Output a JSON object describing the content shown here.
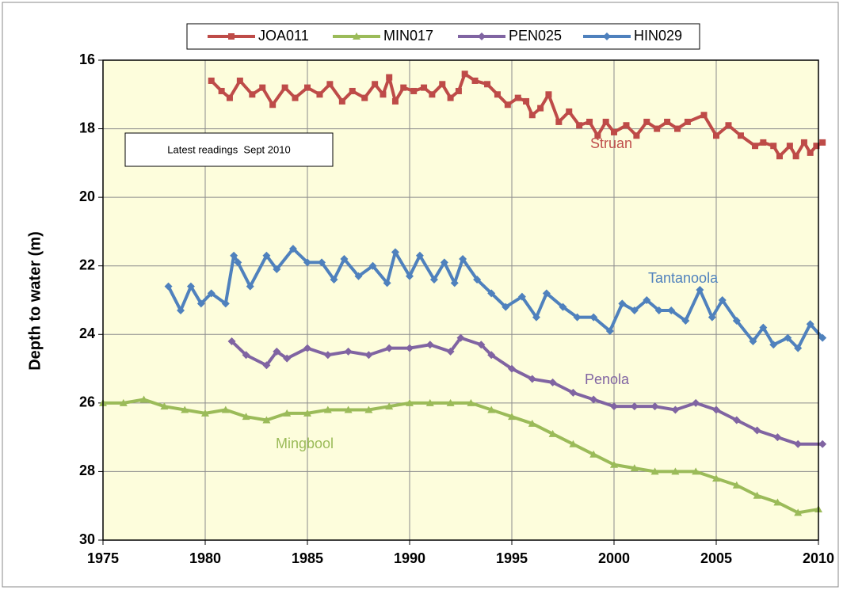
{
  "chart_data": {
    "type": "line",
    "y_label": "Depth to water (m)",
    "xlim": [
      1975,
      2010
    ],
    "ylim": [
      16,
      30
    ],
    "y_inverted": true,
    "grid": true,
    "xticks": [
      1975,
      1980,
      1985,
      1990,
      1995,
      2000,
      2005,
      2010
    ],
    "yticks": [
      16,
      18,
      20,
      22,
      24,
      26,
      28,
      30
    ],
    "legend": "top",
    "annotations": [
      {
        "text": "Latest readings  Sept 2010"
      },
      {
        "text": "Struan",
        "color": "#c0504d"
      },
      {
        "text": "Tantanoola",
        "color": "#4f81bd"
      },
      {
        "text": "Penola",
        "color": "#8064a2"
      },
      {
        "text": "Mingbool",
        "color": "#9bbb59"
      }
    ],
    "series": [
      {
        "name": "JOA011",
        "color": "#be4b48",
        "marker": "square",
        "x": [
          1980.3,
          1980.8,
          1981.2,
          1981.7,
          1982.3,
          1982.8,
          1983.3,
          1983.9,
          1984.4,
          1985.0,
          1985.6,
          1986.1,
          1986.7,
          1987.2,
          1987.8,
          1988.3,
          1988.7,
          1989.0,
          1989.3,
          1989.7,
          1990.2,
          1990.7,
          1991.1,
          1991.6,
          1992.0,
          1992.4,
          1992.7,
          1993.2,
          1993.8,
          1994.3,
          1994.8,
          1995.3,
          1995.7,
          1996.0,
          1996.4,
          1996.8,
          1997.3,
          1997.8,
          1998.3,
          1998.8,
          1999.2,
          1999.6,
          2000.0,
          2000.6,
          2001.1,
          2001.6,
          2002.1,
          2002.6,
          2003.1,
          2003.6,
          2004.4,
          2005.0,
          2005.6,
          2006.2,
          2006.9,
          2007.3,
          2007.8,
          2008.1,
          2008.6,
          2008.9,
          2009.3,
          2009.6,
          2009.9,
          2010.2
        ],
        "values": [
          16.6,
          16.9,
          17.1,
          16.6,
          17.0,
          16.8,
          17.3,
          16.8,
          17.1,
          16.8,
          17.0,
          16.7,
          17.2,
          16.9,
          17.1,
          16.7,
          17.0,
          16.5,
          17.2,
          16.8,
          16.9,
          16.8,
          17.0,
          16.7,
          17.1,
          16.9,
          16.4,
          16.6,
          16.7,
          17.0,
          17.3,
          17.1,
          17.2,
          17.6,
          17.4,
          17.0,
          17.8,
          17.5,
          17.9,
          17.8,
          18.2,
          17.8,
          18.1,
          17.9,
          18.2,
          17.8,
          18.0,
          17.8,
          18.0,
          17.8,
          17.6,
          18.2,
          17.9,
          18.2,
          18.5,
          18.4,
          18.5,
          18.8,
          18.5,
          18.8,
          18.4,
          18.7,
          18.5,
          18.4
        ]
      },
      {
        "name": "MIN017",
        "color": "#9bbb59",
        "marker": "triangle",
        "x": [
          1975,
          1976,
          1977,
          1978,
          1979,
          1980,
          1981,
          1982,
          1983,
          1984,
          1985,
          1986,
          1987,
          1988,
          1989,
          1990,
          1991,
          1992,
          1993,
          1994,
          1995,
          1996,
          1997,
          1998,
          1999,
          2000,
          2001,
          2002,
          2003,
          2004,
          2005,
          2006,
          2007,
          2008,
          2009,
          2010
        ],
        "values": [
          26.0,
          26.0,
          25.9,
          26.1,
          26.2,
          26.3,
          26.2,
          26.4,
          26.5,
          26.3,
          26.3,
          26.2,
          26.2,
          26.2,
          26.1,
          26.0,
          26.0,
          26.0,
          26.0,
          26.2,
          26.4,
          26.6,
          26.9,
          27.2,
          27.5,
          27.8,
          27.9,
          28.0,
          28.0,
          28.0,
          28.2,
          28.4,
          28.7,
          28.9,
          29.2,
          29.1
        ]
      },
      {
        "name": "PEN025",
        "color": "#8064a2",
        "marker": "diamond",
        "x": [
          1981.3,
          1982,
          1983,
          1983.5,
          1984,
          1985,
          1986,
          1987,
          1988,
          1989,
          1990,
          1991,
          1992,
          1992.5,
          1993.5,
          1994,
          1995,
          1996,
          1997,
          1998,
          1999,
          2000,
          2001,
          2002,
          2003,
          2004,
          2005,
          2006,
          2007,
          2008,
          2009,
          2010.2
        ],
        "values": [
          24.2,
          24.6,
          24.9,
          24.5,
          24.7,
          24.4,
          24.6,
          24.5,
          24.6,
          24.4,
          24.4,
          24.3,
          24.5,
          24.1,
          24.3,
          24.6,
          25.0,
          25.3,
          25.4,
          25.7,
          25.9,
          26.1,
          26.1,
          26.1,
          26.2,
          26.0,
          26.2,
          26.5,
          26.8,
          27.0,
          27.2,
          27.2
        ]
      },
      {
        "name": "HIN029",
        "color": "#4f81bd",
        "marker": "diamond",
        "x": [
          1978.2,
          1978.8,
          1979.3,
          1979.8,
          1980.3,
          1981,
          1981.4,
          1981.6,
          1982.2,
          1983,
          1983.5,
          1984.3,
          1985,
          1985.7,
          1986.3,
          1986.8,
          1987.5,
          1988.2,
          1988.9,
          1989.3,
          1990,
          1990.5,
          1991.2,
          1991.7,
          1992.2,
          1992.6,
          1993.3,
          1994,
          1994.7,
          1995.5,
          1996.2,
          1996.7,
          1997.5,
          1998.2,
          1999,
          1999.8,
          2000.4,
          2001,
          2001.6,
          2002.2,
          2002.8,
          2003.5,
          2004.2,
          2004.8,
          2005.3,
          2006,
          2006.8,
          2007.3,
          2007.8,
          2008.5,
          2009,
          2009.6,
          2010.2
        ],
        "values": [
          22.6,
          23.3,
          22.6,
          23.1,
          22.8,
          23.1,
          21.7,
          21.9,
          22.6,
          21.7,
          22.1,
          21.5,
          21.9,
          21.9,
          22.4,
          21.8,
          22.3,
          22.0,
          22.5,
          21.6,
          22.3,
          21.7,
          22.4,
          21.9,
          22.5,
          21.8,
          22.4,
          22.8,
          23.2,
          22.9,
          23.5,
          22.8,
          23.2,
          23.5,
          23.5,
          23.9,
          23.1,
          23.3,
          23.0,
          23.3,
          23.3,
          23.6,
          22.7,
          23.5,
          23.0,
          23.6,
          24.2,
          23.8,
          24.3,
          24.1,
          24.4,
          23.7,
          24.1
        ]
      }
    ]
  }
}
